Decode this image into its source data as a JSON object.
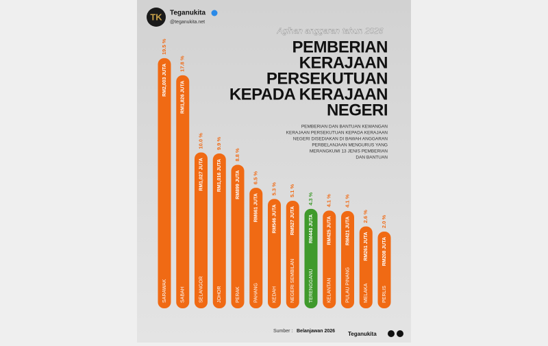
{
  "header": {
    "account": "Teganukita",
    "handle": "@teganukita.net"
  },
  "chart_data": {
    "type": "bar",
    "subtitle": "Agihan anggaran tahun 2026",
    "title_lines": [
      "PEMBERIAN",
      "KERAJAAN",
      "PERSEKUTUAN",
      "KEPADA KERAJAAN",
      "NEGERI"
    ],
    "description_lines": [
      "PEMBERIAN DAN BANTUAN KEWANGAN",
      "KERAJAAN PERSEKUTUAN KEPADA KERAJAAN",
      "NEGERI DISEDIAKAN DI BAWAH ANGGARAN",
      "PERBELANJAAN MENGURUS YANG",
      "MERANGKUMI 13 JENIS PEMBERIAN",
      "DAN BANTUAN"
    ],
    "categories": [
      "SARAWAK",
      "SABAH",
      "SELANGOR",
      "JOHOR",
      "PERAK",
      "PAHANG",
      "KEDAH",
      "NEGERI SEMBILAN",
      "TERENGGANU",
      "KELANTAN",
      "PULAU PINANG",
      "MELAKA",
      "PERLIS"
    ],
    "values": [
      2003,
      1826,
      1027,
      1016,
      899,
      661,
      546,
      527,
      443,
      425,
      421,
      261,
      208
    ],
    "value_labels": [
      "RM2,003 JUTA",
      "RM1,826 JUTA",
      "RM1,027 JUTA",
      "RM1,016 JUTA",
      "RM899 JUTA",
      "RM661 JUTA",
      "RM546 JUTA",
      "RM527 JUTA",
      "RM443 JUTA",
      "RM425 JUTA",
      "RM421 JUTA",
      "RM261 JUTA",
      "RM208 JUTA"
    ],
    "percentages": [
      19.5,
      17.8,
      10.0,
      9.9,
      8.8,
      6.5,
      5.3,
      5.1,
      4.3,
      4.1,
      4.1,
      2.6,
      2.0
    ],
    "percentage_labels": [
      "19.5 %",
      "17.8 %",
      "10.0 %",
      "9.9 %",
      "8.8 %",
      "6.5 %",
      "5.3 %",
      "5.1 %",
      "4.3 %",
      "4.1 %",
      "4.1 %",
      "2.6 %",
      "2.0 %"
    ],
    "colors": [
      "#f06a14",
      "#f06a14",
      "#f06a14",
      "#f06a14",
      "#f06a14",
      "#f06a14",
      "#f06a14",
      "#f06a14",
      "#3f9a2c",
      "#f06a14",
      "#f06a14",
      "#f06a14",
      "#f06a14"
    ],
    "source_label": "Sumber :",
    "source": "Belanjawan 2026"
  },
  "footer": {
    "account": "Teganukita"
  }
}
